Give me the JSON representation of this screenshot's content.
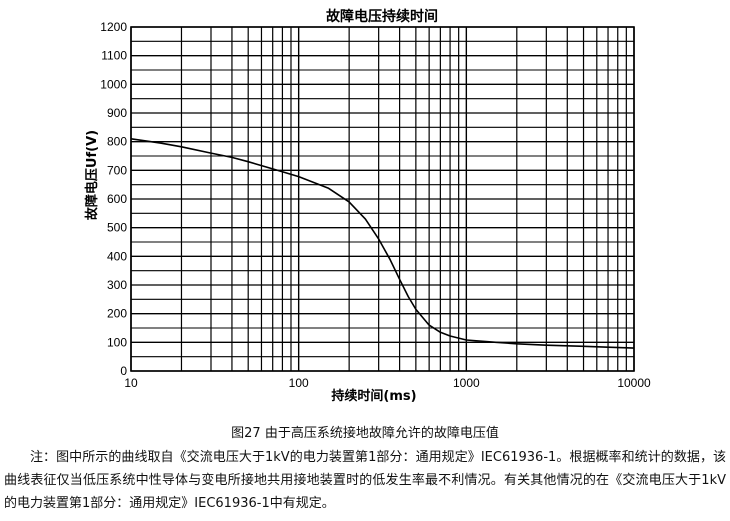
{
  "chart_data": {
    "type": "line",
    "title": "故障电压持续时间",
    "xlabel": "持续时间(ms)",
    "ylabel": "故障电压Uf(V)",
    "x_scale": "log",
    "xlim": [
      10,
      10000
    ],
    "ylim": [
      0,
      1200
    ],
    "x_ticks": [
      "10",
      "100",
      "1000",
      "10000"
    ],
    "y_ticks": [
      "0",
      "100",
      "200",
      "300",
      "400",
      "500",
      "600",
      "700",
      "800",
      "900",
      "1000",
      "1100",
      "1200"
    ],
    "grid": true,
    "series": [
      {
        "color": "#000000",
        "x": [
          10,
          15,
          20,
          30,
          40,
          50,
          70,
          100,
          150,
          200,
          250,
          300,
          350,
          400,
          450,
          500,
          600,
          700,
          800,
          1000,
          1500,
          2000,
          3000,
          5000,
          7000,
          10000
        ],
        "values": [
          810,
          795,
          782,
          760,
          745,
          730,
          705,
          678,
          638,
          590,
          530,
          460,
          390,
          320,
          260,
          215,
          160,
          135,
          122,
          108,
          100,
          95,
          90,
          86,
          83,
          80
        ]
      }
    ]
  },
  "caption": "图27 由于高压系统接地故障允许的故障电压值",
  "note": "注：图中所示的曲线取自《交流电压大于1kV的电力装置第1部分：通用规定》IEC61936-1。根据概率和统计的数据，该曲线表征仅当低压系统中性导体与变电所接地共用接地装置时的低发生率最不利情况。有关其他情况的在《交流电压大于1kV的电力装置第1部分：通用规定》IEC61936-1中有规定。"
}
